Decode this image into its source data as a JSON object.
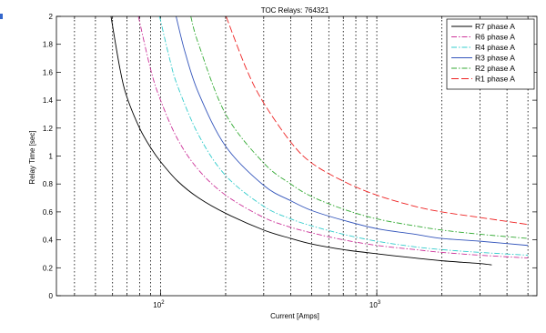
{
  "chart_data": {
    "type": "line",
    "title": "TOC Relays: 764321",
    "xlabel": "Current [Amps]",
    "ylabel": "Relay Time [sec]",
    "xscale": "log",
    "xlim": [
      33,
      5500
    ],
    "ylim": [
      0,
      2
    ],
    "yticks": [
      "0",
      "0.2",
      "0.4",
      "0.6",
      "0.8",
      "1",
      "1.2",
      "1.4",
      "1.6",
      "1.8",
      "2"
    ],
    "xtick_labels": [
      {
        "value": 100,
        "base": "10",
        "exp": "2"
      },
      {
        "value": 1000,
        "base": "10",
        "exp": "3"
      }
    ],
    "x_gridlines": [
      40,
      50,
      60,
      70,
      80,
      90,
      100,
      200,
      300,
      400,
      500,
      600,
      700,
      800,
      900,
      1000,
      2000,
      3000,
      4000,
      5000
    ],
    "grid": "vertical-dotted",
    "legend_position": "top-right",
    "series": [
      {
        "name": "R7 phase A",
        "color": "#000000",
        "style": "solid",
        "points": [
          [
            59,
            2.0
          ],
          [
            65,
            1.62
          ],
          [
            70,
            1.42
          ],
          [
            80,
            1.2
          ],
          [
            90,
            1.06
          ],
          [
            100,
            0.96
          ],
          [
            120,
            0.82
          ],
          [
            150,
            0.7
          ],
          [
            200,
            0.59
          ],
          [
            300,
            0.47
          ],
          [
            400,
            0.41
          ],
          [
            500,
            0.37
          ],
          [
            700,
            0.33
          ],
          [
            1000,
            0.3
          ],
          [
            1500,
            0.27
          ],
          [
            2000,
            0.25
          ],
          [
            3000,
            0.23
          ],
          [
            3400,
            0.22
          ]
        ]
      },
      {
        "name": "R6 phase A",
        "color": "#cc3399",
        "style": "dashdot",
        "points": [
          [
            79,
            2.0
          ],
          [
            90,
            1.62
          ],
          [
            100,
            1.4
          ],
          [
            120,
            1.12
          ],
          [
            150,
            0.9
          ],
          [
            200,
            0.72
          ],
          [
            300,
            0.56
          ],
          [
            400,
            0.49
          ],
          [
            500,
            0.45
          ],
          [
            700,
            0.4
          ],
          [
            1000,
            0.36
          ],
          [
            1500,
            0.33
          ],
          [
            2000,
            0.31
          ],
          [
            3000,
            0.29
          ],
          [
            5000,
            0.27
          ]
        ]
      },
      {
        "name": "R4 phase A",
        "color": "#33cccc",
        "style": "dashdot",
        "points": [
          [
            99,
            2.0
          ],
          [
            110,
            1.7
          ],
          [
            120,
            1.5
          ],
          [
            150,
            1.15
          ],
          [
            200,
            0.86
          ],
          [
            300,
            0.64
          ],
          [
            400,
            0.55
          ],
          [
            500,
            0.5
          ],
          [
            700,
            0.44
          ],
          [
            1000,
            0.39
          ],
          [
            1500,
            0.35
          ],
          [
            2000,
            0.33
          ],
          [
            3000,
            0.31
          ],
          [
            5000,
            0.29
          ]
        ]
      },
      {
        "name": "R3 phase A",
        "color": "#3355bb",
        "style": "solid",
        "points": [
          [
            118,
            2.0
          ],
          [
            130,
            1.74
          ],
          [
            150,
            1.45
          ],
          [
            200,
            1.07
          ],
          [
            300,
            0.79
          ],
          [
            400,
            0.68
          ],
          [
            500,
            0.61
          ],
          [
            700,
            0.54
          ],
          [
            1000,
            0.48
          ],
          [
            1500,
            0.44
          ],
          [
            2000,
            0.41
          ],
          [
            3000,
            0.39
          ],
          [
            5000,
            0.36
          ]
        ]
      },
      {
        "name": "R2 phase A",
        "color": "#33aa33",
        "style": "dashdot",
        "points": [
          [
            138,
            2.0
          ],
          [
            150,
            1.8
          ],
          [
            200,
            1.3
          ],
          [
            300,
            0.95
          ],
          [
            400,
            0.8
          ],
          [
            500,
            0.71
          ],
          [
            700,
            0.62
          ],
          [
            1000,
            0.55
          ],
          [
            1500,
            0.5
          ],
          [
            2000,
            0.47
          ],
          [
            3000,
            0.44
          ],
          [
            5000,
            0.41
          ]
        ]
      },
      {
        "name": "R1 phase A",
        "color": "#ee2222",
        "style": "dashed",
        "points": [
          [
            201,
            2.0
          ],
          [
            250,
            1.62
          ],
          [
            300,
            1.38
          ],
          [
            400,
            1.1
          ],
          [
            500,
            0.95
          ],
          [
            700,
            0.82
          ],
          [
            1000,
            0.72
          ],
          [
            1500,
            0.64
          ],
          [
            2000,
            0.6
          ],
          [
            3000,
            0.56
          ],
          [
            5000,
            0.51
          ]
        ]
      }
    ]
  }
}
